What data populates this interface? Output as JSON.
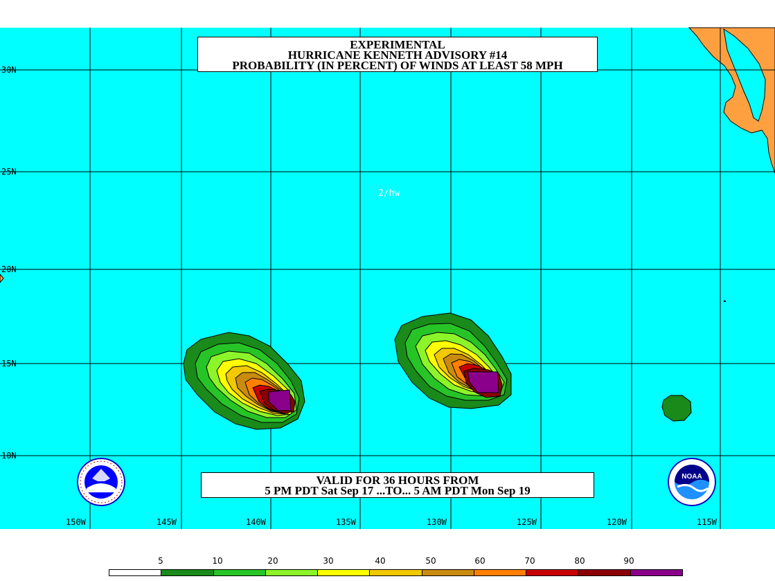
{
  "title": {
    "line1": "EXPERIMENTAL",
    "line2": "HURRICANE KENNETH ADVISORY #14",
    "line3": "PROBABILITY (IN PERCENT) OF WINDS AT LEAST 58 MPH"
  },
  "credit": "2/hw",
  "valid": {
    "line1": "VALID FOR 36 HOURS FROM",
    "line2": "5 PM PDT Sat Sep 17 ...TO... 5 AM PDT Mon Sep 19"
  },
  "latitude_labels": [
    "30N",
    "25N",
    "20N",
    "15N",
    "10N"
  ],
  "longitude_labels": [
    "150W",
    "145W",
    "140W",
    "135W",
    "130W",
    "125W",
    "120W",
    "115W"
  ],
  "colors": {
    "ocean": "#00ffff",
    "land": "#ffa040",
    "grid": "#000000"
  },
  "legend": {
    "labels": [
      "5",
      "10",
      "20",
      "30",
      "40",
      "50",
      "60",
      "70",
      "80",
      "90"
    ],
    "colors": [
      "#ffffff",
      "#1a8a1a",
      "#27c427",
      "#8cf52a",
      "#ffff00",
      "#f2c800",
      "#c98c10",
      "#ff8000",
      "#c80000",
      "#8b0000",
      "#8a008a"
    ]
  },
  "icons": {
    "nws_logo": "nws-logo",
    "noaa_logo": "noaa-logo",
    "noaa_logo_text": "NOAA"
  }
}
